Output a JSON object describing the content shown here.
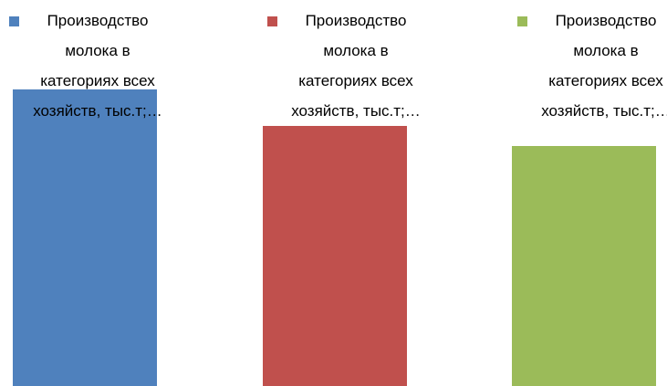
{
  "chart_data": {
    "type": "bar",
    "series": [
      {
        "name": "Производство молока в категориях всех хозяйств, тыс.т;…",
        "color": "#4f81bd",
        "values": [
          325
        ]
      },
      {
        "name": "Производство молока в категориях всех хозяйств, тыс.т;…",
        "color": "#c0504d",
        "values": [
          285
        ]
      },
      {
        "name": "Производство молока в категориях всех хозяйств, тыс.т;…",
        "color": "#9bbb59",
        "values": [
          263
        ]
      }
    ]
  }
}
